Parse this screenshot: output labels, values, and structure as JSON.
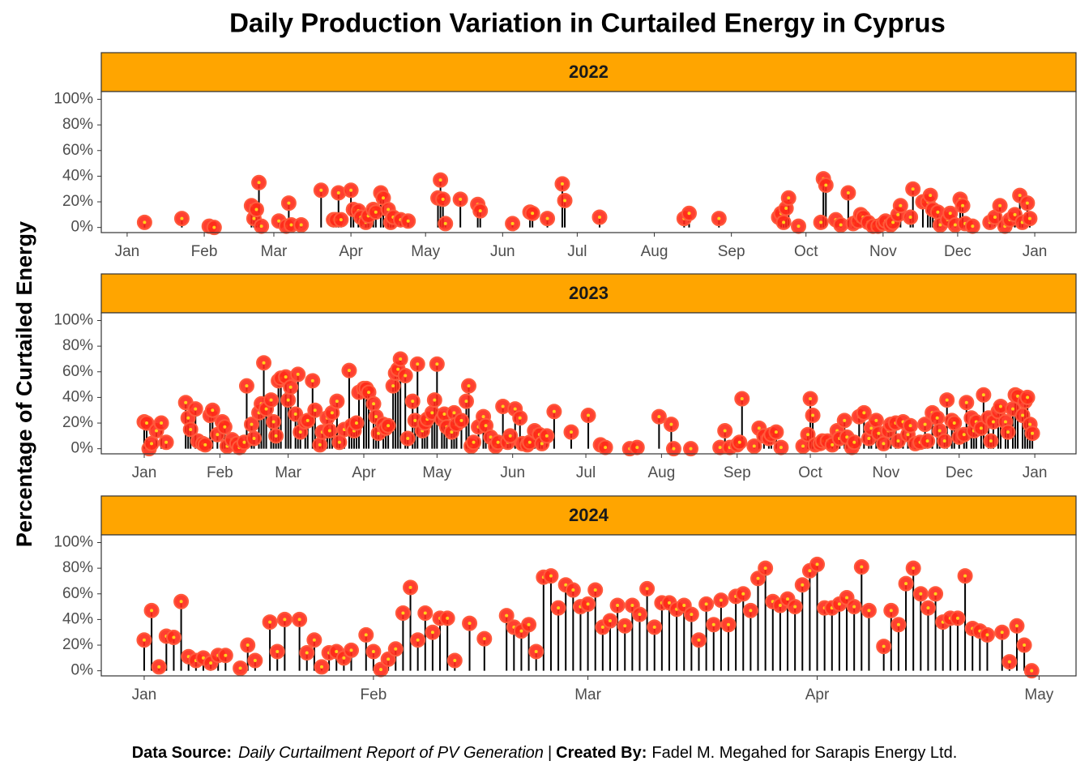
{
  "title": "Daily Production Variation in Curtailed Energy in Cyprus",
  "y_label": "Percentage of Curtailed Energy",
  "caption": {
    "source_label": "Data Source:",
    "source": "Daily Curtailment Report of PV Generation",
    "separator": "|",
    "credit_label": "Created By:",
    "credit": "Fadel M. Megahed for Sarapis Energy Ltd."
  },
  "chart_data": [
    {
      "type": "lollipop",
      "title": "2022",
      "strip_color": "#ffa500",
      "color": "#ff2a1a",
      "stem_color": "#000000",
      "xlim": [
        -10.4,
        381.6
      ],
      "ylim": [
        -4,
        106
      ],
      "xticks": [
        {
          "value": 0,
          "label": "Jan"
        },
        {
          "value": 31,
          "label": "Feb"
        },
        {
          "value": 59,
          "label": "Mar"
        },
        {
          "value": 90,
          "label": "Apr"
        },
        {
          "value": 120,
          "label": "May"
        },
        {
          "value": 151,
          "label": "Jun"
        },
        {
          "value": 181,
          "label": "Jul"
        },
        {
          "value": 212,
          "label": "Aug"
        },
        {
          "value": 243,
          "label": "Sep"
        },
        {
          "value": 273,
          "label": "Oct"
        },
        {
          "value": 304,
          "label": "Nov"
        },
        {
          "value": 334,
          "label": "Dec"
        },
        {
          "value": 365,
          "label": "Jan"
        }
      ],
      "yticks": [
        {
          "value": 0,
          "label": "0%"
        },
        {
          "value": 20,
          "label": "20%"
        },
        {
          "value": 40,
          "label": "40%"
        },
        {
          "value": 60,
          "label": "60%"
        },
        {
          "value": 80,
          "label": "80%"
        },
        {
          "value": 100,
          "label": "100%"
        }
      ],
      "x": [
        7,
        22,
        33,
        35,
        50,
        51,
        52,
        53,
        54,
        61,
        64,
        65,
        66,
        70,
        78,
        83,
        84,
        85,
        86,
        90,
        91,
        93,
        94,
        96,
        97,
        99,
        100,
        102,
        103,
        105,
        106,
        107,
        110,
        113,
        125,
        126,
        127,
        128,
        134,
        141,
        142,
        155,
        162,
        163,
        169,
        175,
        176,
        190,
        224,
        226,
        238,
        262,
        263,
        264,
        265,
        266,
        270,
        279,
        280,
        281,
        285,
        287,
        290,
        292,
        294,
        295,
        296,
        298,
        300,
        302,
        304,
        305,
        307,
        308,
        310,
        311,
        315,
        316,
        320,
        322,
        323,
        324,
        326,
        327,
        330,
        331,
        333,
        335,
        336,
        337,
        340,
        347,
        349,
        351,
        353,
        355,
        357,
        359,
        360,
        362,
        363
      ],
      "values": [
        4,
        7,
        1,
        0,
        17,
        7,
        14,
        35,
        1,
        5,
        1,
        19,
        2,
        2,
        29,
        6,
        6,
        27,
        6,
        29,
        14,
        13,
        8,
        4,
        9,
        14,
        12,
        27,
        23,
        14,
        4,
        8,
        6,
        5,
        23,
        37,
        22,
        3,
        22,
        18,
        13,
        3,
        12,
        11,
        7,
        34,
        21,
        8,
        7,
        11,
        7,
        8,
        11,
        4,
        15,
        23,
        1,
        4,
        38,
        33,
        6,
        2,
        27,
        3,
        5,
        10,
        8,
        4,
        1,
        1,
        3,
        5,
        2,
        4,
        10,
        17,
        8,
        30,
        20,
        20,
        25,
        14,
        12,
        2,
        6,
        11,
        2,
        22,
        17,
        3,
        1,
        4,
        8,
        17,
        1,
        6,
        10,
        25,
        4,
        19,
        7
      ]
    },
    {
      "type": "lollipop",
      "title": "2023",
      "strip_color": "#ffa500",
      "color": "#ff2a1a",
      "stem_color": "#000000",
      "xlim": [
        -17.6,
        381.9
      ],
      "ylim": [
        -4,
        106
      ],
      "xticks": [
        {
          "value": 0,
          "label": "Jan"
        },
        {
          "value": 31,
          "label": "Feb"
        },
        {
          "value": 59,
          "label": "Mar"
        },
        {
          "value": 90,
          "label": "Apr"
        },
        {
          "value": 120,
          "label": "May"
        },
        {
          "value": 151,
          "label": "Jun"
        },
        {
          "value": 181,
          "label": "Jul"
        },
        {
          "value": 212,
          "label": "Aug"
        },
        {
          "value": 243,
          "label": "Sep"
        },
        {
          "value": 273,
          "label": "Oct"
        },
        {
          "value": 304,
          "label": "Nov"
        },
        {
          "value": 334,
          "label": "Dec"
        },
        {
          "value": 365,
          "label": "Jan"
        }
      ],
      "yticks": [
        {
          "value": 0,
          "label": "0%"
        },
        {
          "value": 20,
          "label": "20%"
        },
        {
          "value": 40,
          "label": "40%"
        },
        {
          "value": 60,
          "label": "60%"
        },
        {
          "value": 80,
          "label": "80%"
        },
        {
          "value": 100,
          "label": "100%"
        }
      ],
      "x": [
        0,
        1,
        2,
        3,
        5,
        7,
        9,
        17,
        18,
        19,
        21,
        22,
        24,
        25,
        27,
        28,
        30,
        32,
        33,
        34,
        36,
        38,
        39,
        41,
        42,
        44,
        45,
        47,
        48,
        49,
        50,
        52,
        53,
        54,
        55,
        56,
        58,
        59,
        60,
        62,
        63,
        64,
        66,
        67,
        69,
        70,
        72,
        73,
        75,
        76,
        77,
        79,
        80,
        82,
        84,
        85,
        86,
        87,
        88,
        90,
        91,
        92,
        94,
        95,
        96,
        98,
        99,
        100,
        102,
        103,
        104,
        105,
        107,
        108,
        110,
        111,
        112,
        114,
        115,
        116,
        118,
        119,
        120,
        122,
        123,
        124,
        126,
        127,
        128,
        130,
        132,
        133,
        134,
        135,
        137,
        139,
        140,
        142,
        144,
        145,
        147,
        149,
        150,
        152,
        154,
        155,
        157,
        158,
        160,
        162,
        163,
        165,
        168,
        175,
        182,
        187,
        189,
        199,
        202,
        211,
        216,
        217,
        224,
        236,
        238,
        240,
        243,
        244,
        245,
        250,
        252,
        254,
        256,
        257,
        259,
        261,
        270,
        272,
        273,
        274,
        275,
        277,
        278,
        280,
        282,
        284,
        285,
        287,
        288,
        290,
        291,
        293,
        295,
        297,
        298,
        300,
        301,
        303,
        305,
        306,
        308,
        309,
        311,
        313,
        314,
        316,
        318,
        320,
        321,
        323,
        325,
        326,
        328,
        329,
        331,
        332,
        334,
        336,
        337,
        339,
        340,
        341,
        343,
        344,
        346,
        347,
        348,
        350,
        351,
        353,
        354,
        356,
        357,
        358,
        360,
        361,
        362,
        363,
        364
      ],
      "values": [
        21,
        20,
        0,
        4,
        14,
        20,
        5,
        36,
        24,
        15,
        31,
        6,
        4,
        3,
        26,
        30,
        11,
        21,
        17,
        2,
        7,
        4,
        1,
        5,
        49,
        19,
        8,
        28,
        35,
        67,
        31,
        38,
        21,
        10,
        53,
        55,
        56,
        38,
        48,
        27,
        58,
        13,
        21,
        22,
        53,
        30,
        3,
        13,
        24,
        14,
        28,
        37,
        5,
        15,
        61,
        18,
        14,
        20,
        44,
        47,
        47,
        44,
        35,
        25,
        12,
        19,
        16,
        18,
        49,
        59,
        62,
        70,
        57,
        8,
        37,
        22,
        66,
        14,
        20,
        23,
        28,
        38,
        66,
        23,
        27,
        17,
        13,
        28,
        19,
        22,
        37,
        49,
        2,
        5,
        17,
        25,
        18,
        9,
        2,
        5,
        33,
        5,
        10,
        31,
        24,
        4,
        3,
        5,
        14,
        11,
        4,
        10,
        29,
        13,
        26,
        3,
        1,
        0,
        1,
        25,
        19,
        0,
        0,
        1,
        14,
        1,
        3,
        5,
        39,
        2,
        16,
        10,
        8,
        11,
        13,
        1,
        2,
        11,
        39,
        26,
        3,
        4,
        6,
        6,
        3,
        14,
        8,
        22,
        9,
        1,
        5,
        25,
        28,
        8,
        16,
        22,
        12,
        4,
        14,
        19,
        20,
        6,
        21,
        11,
        18,
        4,
        5,
        19,
        6,
        28,
        24,
        14,
        6,
        38,
        22,
        20,
        9,
        11,
        36,
        24,
        14,
        21,
        16,
        42,
        24,
        6,
        21,
        29,
        33,
        21,
        13,
        31,
        42,
        41,
        26,
        37,
        40,
        19,
        12
      ]
    },
    {
      "type": "lollipop",
      "title": "2024",
      "strip_color": "#ffa500",
      "color": "#ff2a1a",
      "stem_color": "#000000",
      "xlim": [
        -5.8,
        126.0
      ],
      "ylim": [
        -4,
        106
      ],
      "xticks": [
        {
          "value": 0,
          "label": "Jan"
        },
        {
          "value": 31,
          "label": "Feb"
        },
        {
          "value": 60,
          "label": "Mar"
        },
        {
          "value": 91,
          "label": "Apr"
        },
        {
          "value": 121,
          "label": "May"
        }
      ],
      "yticks": [
        {
          "value": 0,
          "label": "0%"
        },
        {
          "value": 20,
          "label": "20%"
        },
        {
          "value": 40,
          "label": "40%"
        },
        {
          "value": 60,
          "label": "60%"
        },
        {
          "value": 80,
          "label": "80%"
        },
        {
          "value": 100,
          "label": "100%"
        }
      ],
      "x": [
        0,
        1,
        2,
        3,
        4,
        5,
        6,
        7,
        8,
        9,
        10,
        11,
        13,
        14,
        15,
        17,
        18,
        19,
        21,
        22,
        23,
        24,
        25,
        26,
        27,
        28,
        30,
        31,
        32,
        33,
        34,
        35,
        36,
        37,
        38,
        39,
        40,
        41,
        42,
        44,
        46,
        49,
        50,
        51,
        52,
        53,
        54,
        55,
        56,
        57,
        58,
        59,
        60,
        61,
        62,
        63,
        64,
        65,
        66,
        67,
        68,
        69,
        70,
        71,
        72,
        73,
        74,
        75,
        76,
        77,
        78,
        79,
        80,
        81,
        82,
        83,
        84,
        85,
        86,
        87,
        88,
        89,
        90,
        91,
        92,
        93,
        94,
        95,
        96,
        97,
        98,
        100,
        101,
        102,
        103,
        104,
        105,
        106,
        107,
        108,
        109,
        110,
        111,
        112,
        113,
        114,
        116,
        117,
        118,
        119,
        120
      ],
      "values": [
        24,
        47,
        3,
        27,
        26,
        54,
        11,
        8,
        10,
        6,
        12,
        12,
        2,
        20,
        8,
        38,
        15,
        40,
        40,
        14,
        24,
        3,
        14,
        15,
        10,
        16,
        28,
        15,
        1,
        9,
        17,
        45,
        65,
        24,
        45,
        30,
        41,
        41,
        8,
        37,
        25,
        43,
        34,
        31,
        36,
        15,
        73,
        74,
        49,
        67,
        63,
        50,
        52,
        63,
        34,
        39,
        51,
        35,
        51,
        44,
        64,
        34,
        53,
        53,
        48,
        51,
        44,
        24,
        52,
        36,
        55,
        36,
        58,
        60,
        47,
        72,
        80,
        54,
        51,
        56,
        50,
        67,
        78,
        83,
        49,
        49,
        52,
        57,
        50,
        81,
        47,
        19,
        47,
        36,
        68,
        80,
        60,
        49,
        60,
        38,
        41,
        41,
        74,
        33,
        31,
        28,
        30,
        7,
        35,
        20,
        0
      ]
    }
  ]
}
